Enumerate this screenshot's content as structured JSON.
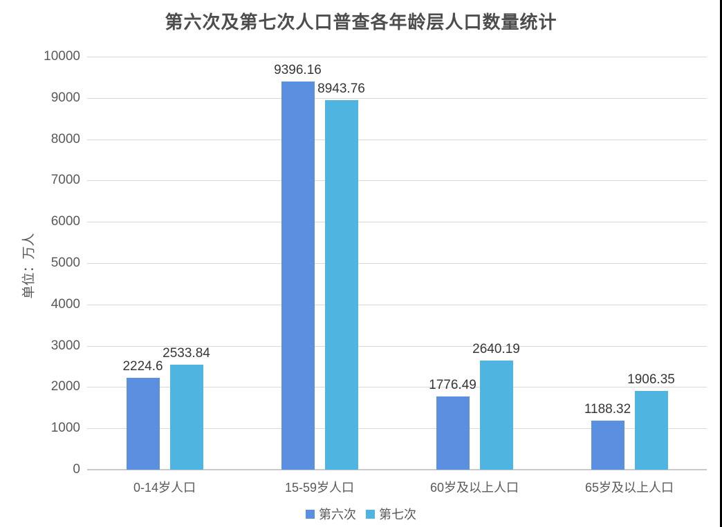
{
  "chart_data": {
    "type": "bar",
    "title": "第六次及第七次人口普查各年龄层人口数量统计",
    "ylabel": "单位：万人",
    "xlabel": "",
    "categories": [
      "0-14岁人口",
      "15-59岁人口",
      "60岁及以上人口",
      "65岁及以上人口"
    ],
    "series": [
      {
        "name": "第六次",
        "color": "#5B8FE0",
        "values": [
          2224.6,
          9396.16,
          1776.49,
          1188.32
        ]
      },
      {
        "name": "第七次",
        "color": "#4FB5E0",
        "values": [
          2533.84,
          8943.76,
          2640.19,
          1906.35
        ]
      }
    ],
    "ylim": [
      0,
      10000
    ],
    "ytick_step": 1000,
    "grid": true,
    "legend_position": "bottom"
  },
  "colors": {
    "gridline": "#d9d9d9",
    "axis_line": "#c9c9c9",
    "title_text": "#4d4d4d",
    "tick_text": "#595959",
    "value_text": "#363636",
    "background": "#ffffff"
  }
}
